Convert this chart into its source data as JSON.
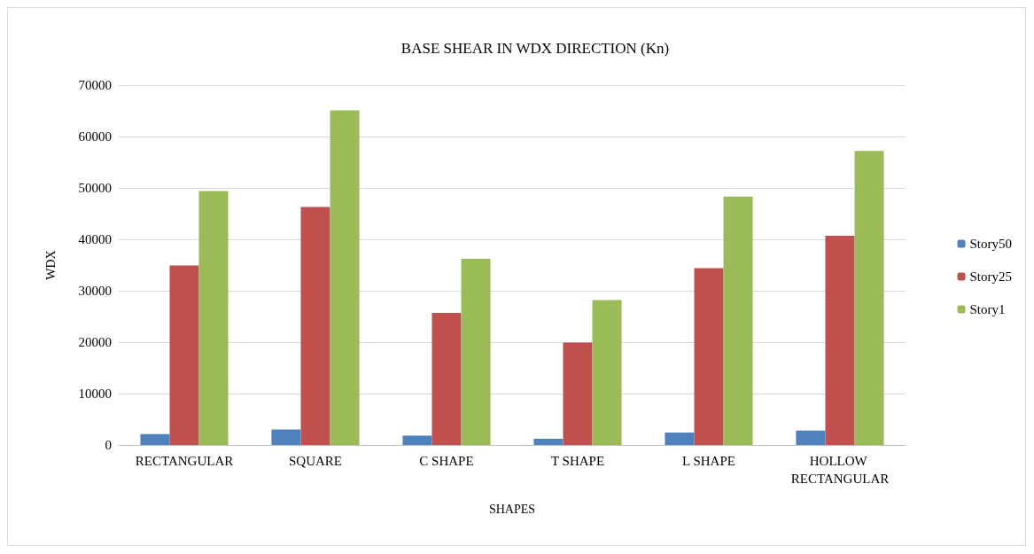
{
  "chart_data": {
    "type": "bar",
    "title": "BASE SHEAR IN WDX DIRECTION (Kn)",
    "xlabel": "SHAPES",
    "ylabel": "WDX",
    "categories": [
      "RECTANGULAR",
      "SQUARE",
      "C SHAPE",
      "T SHAPE",
      "L SHAPE",
      "HOLLOW RECTANGULAR"
    ],
    "series": [
      {
        "name": "Story50",
        "color": "#4f81bd",
        "values": [
          2100,
          3000,
          1800,
          1200,
          2400,
          2800
        ]
      },
      {
        "name": "Story25",
        "color": "#c0504d",
        "values": [
          34900,
          46300,
          25700,
          19900,
          34400,
          40700
        ]
      },
      {
        "name": "Story1",
        "color": "#9bbb59",
        "values": [
          49400,
          65100,
          36200,
          28200,
          48300,
          57200
        ]
      }
    ],
    "ylim": [
      0,
      70000
    ],
    "yticks": [
      0,
      10000,
      20000,
      30000,
      40000,
      50000,
      60000,
      70000
    ],
    "grid": "y",
    "legend": "right"
  }
}
